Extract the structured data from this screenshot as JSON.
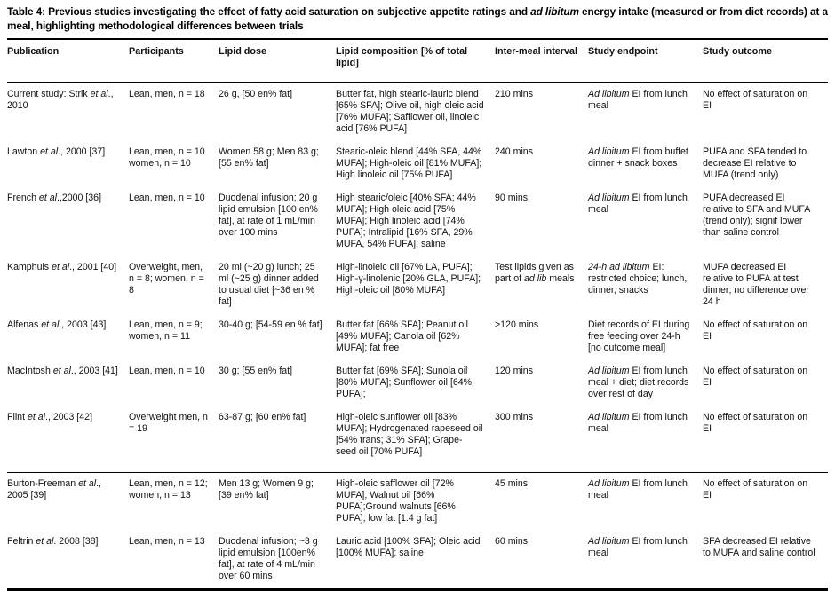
{
  "title": {
    "text": "Table 4: Previous studies investigating the effect of fatty acid saturation on subjective appetite ratings and *ad libitum* energy intake (measured or from diet records) at a meal, highlighting methodological differences between trials"
  },
  "table": {
    "columns": [
      "Publication",
      "Participants",
      "Lipid dose",
      "Lipid composition [% of total lipid]",
      "Inter-meal interval",
      "Study endpoint",
      "Study outcome"
    ],
    "rows": [
      {
        "cells": [
          "Current study: Strik *et al*., 2010",
          "Lean, men, n = 18",
          "26 g, [50 en% fat]",
          "Butter fat, high stearic-lauric blend [65% SFA]; Olive oil, high oleic acid [76% MUFA]; Safflower oil, linoleic acid [76% PUFA]",
          "210 mins",
          "*Ad libitum* EI from lunch meal",
          "No effect of saturation on EI"
        ]
      },
      {
        "cells": [
          "Lawton *et al*., 2000 [37]",
          "Lean, men, n = 10 women, n = 10",
          "Women 58 g; Men 83 g; [55 en% fat]",
          "Stearic-oleic blend [44% SFA, 44% MUFA]; High-oleic oil [81% MUFA]; High linoleic oil [75% PUFA]",
          "240 mins",
          "*Ad libitum* EI from buffet dinner + snack boxes",
          "PUFA and SFA tended to decrease EI relative to MUFA (trend only)"
        ]
      },
      {
        "cells": [
          "French *et al*.,2000 [36]",
          "Lean, men, n = 10",
          "Duodenal infusion; 20 g lipid emulsion [100 en% fat], at rate of 1 mL/min over 100 mins",
          "High stearic/oleic [40% SFA; 44% MUFA]; High oleic acid [75% MUFA]; High linoleic acid [74% PUFA]; Intralipid [16% SFA, 29% MUFA, 54% PUFA]; saline",
          "90 mins",
          "*Ad libitum* EI from lunch meal",
          "PUFA decreased EI relative to SFA and MUFA (trend only); signif lower than saline control"
        ]
      },
      {
        "cells": [
          "Kamphuis *et al*., 2001 [40]",
          "Overweight, men, n = 8; women, n = 8",
          "20 ml (~20 g) lunch; 25 ml (~25 g) dinner added to usual diet [~36 en % fat]",
          "High-linoleic oil [67% LA, PUFA]; High-γ-linolenic [20% GLA, PUFA]; High-oleic oil [80% MUFA]",
          "Test lipids given as part of *ad lib* meals",
          "*24-h ad libitum* EI: restricted choice; lunch, dinner, snacks",
          "MUFA decreased EI relative to PUFA at test dinner; no difference over 24 h"
        ]
      },
      {
        "cells": [
          "Alfenas *et al*., 2003 [43]",
          "Lean, men, n = 9; women, n = 11",
          "30-40 g; [54-59 en % fat]",
          "Butter fat [66% SFA]; Peanut oil [49% MUFA]; Canola oil [62% MUFA]; fat free",
          ">120 mins",
          "Diet records of EI during free feeding over 24-h [no outcome meal]",
          "No effect of saturation on EI"
        ]
      },
      {
        "cells": [
          "MacIntosh *et al*., 2003 [41]",
          "Lean, men, n = 10",
          "30 g; [55 en% fat]",
          "Butter fat [69% SFA]; Sunola oil [80% MUFA]; Sunflower oil [64% PUFA];",
          "120 mins",
          "*Ad libitum* EI from lunch meal + diet; diet records over rest of day",
          "No effect of saturation on EI"
        ]
      },
      {
        "cells": [
          "Flint *et al*., 2003 [42]",
          "Overweight men, n = 19",
          "63-87 g; [60 en% fat]",
          "High-oleic sunflower oil [83% MUFA]; Hydrogenated rapeseed oil [54% trans; 31% SFA]; Grape- seed oil [70% PUFA]",
          "300 mins",
          "*Ad libitum* EI from lunch meal",
          "No effect of saturation on EI"
        ]
      },
      {
        "cells": [
          "Burton-Freeman *et al*., 2005 [39]",
          "Lean, men, n = 12; women, n = 13",
          "Men 13 g; Women 9 g; [39 en% fat]",
          "High-oleic safflower oil [72% MUFA]; Walnut oil [66% PUFA];Ground walnuts [66% PUFA]; low fat [1.4 g fat]",
          "45 mins",
          "*Ad libitum* EI from lunch meal",
          "No effect of saturation on EI"
        ]
      },
      {
        "cells": [
          "Feltrin *et al*. 2008 [38]",
          "Lean, men, n = 13",
          "Duodenal infusion; ~3 g lipid emulsion [100en% fat], at rate of 4 mL/min over 60 mins",
          "Lauric acid [100% SFA]; Oleic acid [100% MUFA]; saline",
          "60 mins",
          "*Ad libitum* EI from lunch meal",
          "SFA decreased EI relative to MUFA and saline control"
        ]
      }
    ]
  }
}
